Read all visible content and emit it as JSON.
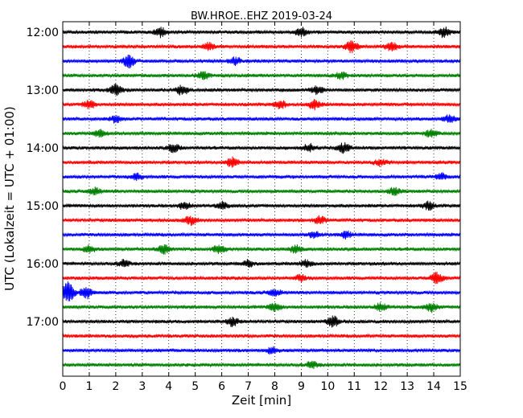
{
  "chart_data": {
    "type": "line",
    "title": "BW.HROE..EHZ 2019-03-24",
    "xlabel": "Zeit  [min]",
    "ylabel": "UTC (Lokalzeit = UTC + 01:00)",
    "xlim": [
      0,
      15
    ],
    "x_ticks": [
      0,
      1,
      2,
      3,
      4,
      5,
      6,
      7,
      8,
      9,
      10,
      11,
      12,
      13,
      14,
      15
    ],
    "y_tick_labels": [
      "12:00",
      "13:00",
      "14:00",
      "15:00",
      "16:00",
      "17:00"
    ],
    "grid": "vertical dotted",
    "trace_colors": [
      "#000000",
      "#ff0000",
      "#0000ff",
      "#008000"
    ],
    "traces": [
      {
        "start": "12:00",
        "color": "#000000",
        "bursts": [
          {
            "x": 3.7,
            "amp": 1.8
          },
          {
            "x": 9.0,
            "amp": 1.6
          },
          {
            "x": 14.4,
            "amp": 2.0
          }
        ]
      },
      {
        "start": "12:15",
        "color": "#ff0000",
        "bursts": [
          {
            "x": 5.5,
            "amp": 1.4
          },
          {
            "x": 10.9,
            "amp": 2.2
          },
          {
            "x": 12.4,
            "amp": 1.5
          }
        ]
      },
      {
        "start": "12:30",
        "color": "#0000ff",
        "bursts": [
          {
            "x": 2.5,
            "amp": 2.5
          },
          {
            "x": 6.5,
            "amp": 1.3
          }
        ]
      },
      {
        "start": "12:45",
        "color": "#008000",
        "bursts": [
          {
            "x": 5.3,
            "amp": 1.4
          },
          {
            "x": 10.5,
            "amp": 1.3
          }
        ]
      },
      {
        "start": "13:00",
        "color": "#000000",
        "bursts": [
          {
            "x": 2.0,
            "amp": 2.2
          },
          {
            "x": 4.5,
            "amp": 1.8
          },
          {
            "x": 9.6,
            "amp": 1.6
          }
        ]
      },
      {
        "start": "13:15",
        "color": "#ff0000",
        "bursts": [
          {
            "x": 1.0,
            "amp": 1.6
          },
          {
            "x": 8.2,
            "amp": 1.5
          },
          {
            "x": 9.5,
            "amp": 1.7
          }
        ]
      },
      {
        "start": "13:30",
        "color": "#0000ff",
        "bursts": [
          {
            "x": 2.0,
            "amp": 1.2
          },
          {
            "x": 14.6,
            "amp": 1.4
          }
        ]
      },
      {
        "start": "13:45",
        "color": "#008000",
        "bursts": [
          {
            "x": 1.4,
            "amp": 1.4
          },
          {
            "x": 13.9,
            "amp": 1.5
          }
        ]
      },
      {
        "start": "14:00",
        "color": "#000000",
        "bursts": [
          {
            "x": 4.2,
            "amp": 1.6
          },
          {
            "x": 9.3,
            "amp": 1.4
          },
          {
            "x": 10.6,
            "amp": 1.8
          }
        ]
      },
      {
        "start": "14:15",
        "color": "#ff0000",
        "bursts": [
          {
            "x": 6.4,
            "amp": 2.0
          },
          {
            "x": 12.0,
            "amp": 1.3
          }
        ]
      },
      {
        "start": "14:30",
        "color": "#0000ff",
        "bursts": [
          {
            "x": 2.8,
            "amp": 1.2
          },
          {
            "x": 14.3,
            "amp": 1.3
          }
        ]
      },
      {
        "start": "14:45",
        "color": "#008000",
        "bursts": [
          {
            "x": 1.2,
            "amp": 1.3
          },
          {
            "x": 12.5,
            "amp": 1.3
          }
        ]
      },
      {
        "start": "15:00",
        "color": "#000000",
        "bursts": [
          {
            "x": 4.6,
            "amp": 1.5
          },
          {
            "x": 6.0,
            "amp": 1.4
          },
          {
            "x": 13.8,
            "amp": 1.4
          }
        ]
      },
      {
        "start": "15:15",
        "color": "#ff0000",
        "bursts": [
          {
            "x": 4.8,
            "amp": 1.7
          },
          {
            "x": 9.7,
            "amp": 1.4
          }
        ]
      },
      {
        "start": "15:30",
        "color": "#0000ff",
        "bursts": [
          {
            "x": 9.5,
            "amp": 1.3
          },
          {
            "x": 10.7,
            "amp": 1.3
          }
        ]
      },
      {
        "start": "15:45",
        "color": "#008000",
        "bursts": [
          {
            "x": 1.0,
            "amp": 1.4
          },
          {
            "x": 3.8,
            "amp": 1.7
          },
          {
            "x": 5.9,
            "amp": 1.6
          },
          {
            "x": 8.8,
            "amp": 1.4
          }
        ]
      },
      {
        "start": "16:00",
        "color": "#000000",
        "bursts": [
          {
            "x": 2.3,
            "amp": 1.3
          },
          {
            "x": 7.0,
            "amp": 1.3
          },
          {
            "x": 9.2,
            "amp": 1.3
          }
        ]
      },
      {
        "start": "16:15",
        "color": "#ff0000",
        "bursts": [
          {
            "x": 9.0,
            "amp": 1.2
          },
          {
            "x": 14.1,
            "amp": 2.6
          }
        ]
      },
      {
        "start": "16:30",
        "color": "#0000ff",
        "bursts": [
          {
            "x": 0.2,
            "amp": 4.0
          },
          {
            "x": 0.9,
            "amp": 2.2
          },
          {
            "x": 8.0,
            "amp": 1.3
          }
        ]
      },
      {
        "start": "16:45",
        "color": "#008000",
        "bursts": [
          {
            "x": 8.0,
            "amp": 1.5
          },
          {
            "x": 12.0,
            "amp": 1.5
          },
          {
            "x": 13.9,
            "amp": 1.7
          }
        ]
      },
      {
        "start": "17:00",
        "color": "#000000",
        "bursts": [
          {
            "x": 6.4,
            "amp": 1.6
          },
          {
            "x": 10.2,
            "amp": 2.0
          }
        ]
      },
      {
        "start": "17:15",
        "color": "#ff0000",
        "bursts": []
      },
      {
        "start": "17:30",
        "color": "#0000ff",
        "bursts": [
          {
            "x": 7.9,
            "amp": 1.3
          }
        ]
      },
      {
        "start": "17:45",
        "color": "#008000",
        "bursts": [
          {
            "x": 9.4,
            "amp": 1.2
          }
        ]
      }
    ]
  }
}
